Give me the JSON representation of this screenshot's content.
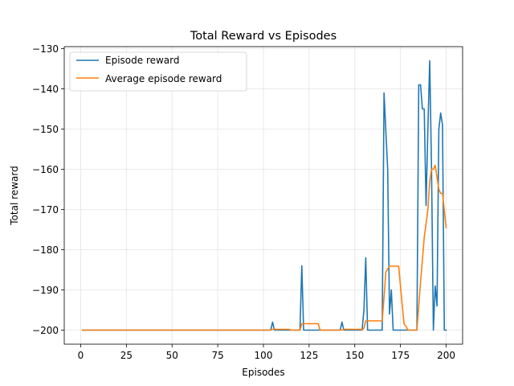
{
  "chart_data": {
    "type": "line",
    "title": "Total Reward vs Episodes",
    "xlabel": "Episodes",
    "ylabel": "Total reward",
    "xlim": [
      -9,
      209
    ],
    "ylim": [
      -203.5,
      -129.5
    ],
    "xticks": [
      0,
      25,
      50,
      75,
      100,
      125,
      150,
      175,
      200
    ],
    "xtick_labels": [
      "0",
      "25",
      "50",
      "75",
      "100",
      "125",
      "150",
      "175",
      "200"
    ],
    "yticks": [
      -200,
      -190,
      -180,
      -170,
      -160,
      -150,
      -140,
      -130
    ],
    "ytick_labels": [
      "−200",
      "−190",
      "−180",
      "−170",
      "−160",
      "−150",
      "−140",
      "−130"
    ],
    "grid": true,
    "legend_position": "top-left",
    "series": [
      {
        "name": "Episode reward",
        "color": "#1f77b4",
        "points": [
          [
            1,
            -200
          ],
          [
            104,
            -200
          ],
          [
            105,
            -198
          ],
          [
            106,
            -200
          ],
          [
            120,
            -200
          ],
          [
            121,
            -184
          ],
          [
            122,
            -200
          ],
          [
            142,
            -200
          ],
          [
            143,
            -198
          ],
          [
            144,
            -200
          ],
          [
            154,
            -200
          ],
          [
            155,
            -195
          ],
          [
            156,
            -182
          ],
          [
            157,
            -200
          ],
          [
            165,
            -200
          ],
          [
            166,
            -141
          ],
          [
            168,
            -160
          ],
          [
            169,
            -196
          ],
          [
            170,
            -190
          ],
          [
            171,
            -200
          ],
          [
            184,
            -200
          ],
          [
            185,
            -139
          ],
          [
            186,
            -139
          ],
          [
            187,
            -145
          ],
          [
            188,
            -145
          ],
          [
            189,
            -169
          ],
          [
            190,
            -150
          ],
          [
            191,
            -133
          ],
          [
            192,
            -160
          ],
          [
            193,
            -200
          ],
          [
            194,
            -189
          ],
          [
            195,
            -194
          ],
          [
            196,
            -150
          ],
          [
            197,
            -146
          ],
          [
            198,
            -149
          ],
          [
            199,
            -200
          ],
          [
            200,
            -200
          ]
        ]
      },
      {
        "name": "Average episode reward",
        "color": "#ff7f0e",
        "points": [
          [
            1,
            -200
          ],
          [
            104,
            -200
          ],
          [
            105,
            -199.8
          ],
          [
            114,
            -199.8
          ],
          [
            115,
            -200
          ],
          [
            120,
            -200
          ],
          [
            121,
            -198.4
          ],
          [
            130,
            -198.4
          ],
          [
            131,
            -200
          ],
          [
            143,
            -200
          ],
          [
            144,
            -199.8
          ],
          [
            153,
            -199.8
          ],
          [
            154,
            -200
          ],
          [
            155,
            -199.5
          ],
          [
            156,
            -197.7
          ],
          [
            165,
            -197.7
          ],
          [
            166,
            -191.8
          ],
          [
            167,
            -185.5
          ],
          [
            169,
            -184.1
          ],
          [
            174,
            -184.1
          ],
          [
            175,
            -189
          ],
          [
            176,
            -194
          ],
          [
            177,
            -198.5
          ],
          [
            178,
            -199
          ],
          [
            179,
            -200
          ],
          [
            184,
            -200
          ],
          [
            185,
            -193.9
          ],
          [
            186,
            -188
          ],
          [
            188,
            -177
          ],
          [
            190,
            -170
          ],
          [
            191,
            -163
          ],
          [
            192,
            -160
          ],
          [
            193,
            -160
          ],
          [
            194,
            -159
          ],
          [
            196,
            -165
          ],
          [
            197,
            -166
          ],
          [
            198,
            -166
          ],
          [
            200,
            -174.5
          ]
        ]
      }
    ]
  }
}
